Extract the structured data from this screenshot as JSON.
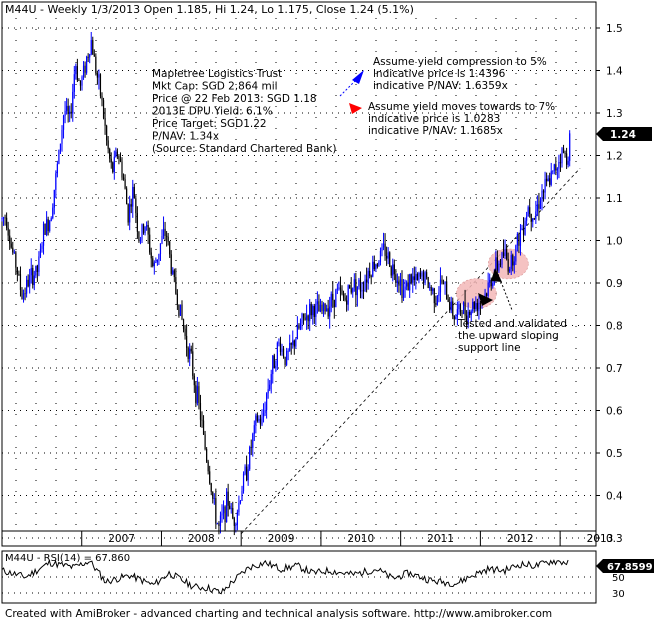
{
  "header": {
    "title": "M44U - Weekly 1/3/2013 Open 1.185, Hi 1.24, Lo 1.175, Close 1.24 (5.1%)"
  },
  "info_box": {
    "lines": [
      "Mapletree Logistics Trust",
      "Mkt Cap: SGD 2,864 mil",
      "Price @ 22 Feb 2013: SGD 1.18",
      "2013E DPU Yield: 6.1%",
      "Price Target: SGD1.22",
      "P/NAV: 1.34x",
      "(Source: Standard Chartered Bank)"
    ]
  },
  "annotations": {
    "up": [
      "Assume yield compression to 5%",
      "indicative price is 1.4396",
      "indicative P/NAV: 1.6359x"
    ],
    "down": [
      "Assume yield moves towards to 7%",
      "indicative price is 1.0283",
      "indicative P/NAV: 1.1685x"
    ],
    "support": [
      "Tested and validated",
      "the upward sloping",
      "support line"
    ]
  },
  "colors": {
    "up_arrow": "#0000ff",
    "down_arrow": "#ff0000",
    "candle_up": "#0000ff",
    "candle_down": "#000000",
    "highlight": "#f4b8b8",
    "label_bg": "#000000"
  },
  "footer": {
    "text": "Created with AmiBroker - advanced charting and technical analysis software. http://www.amibroker.com"
  },
  "chart_data": [
    {
      "type": "candlestick",
      "title": "M44U - Weekly 1/3/2013 Open 1.185, Hi 1.24, Lo 1.175, Close 1.24 (5.1%)",
      "ylim": [
        0.28,
        1.56
      ],
      "y_ticks": [
        0.3,
        0.4,
        0.5,
        0.6,
        0.7,
        0.8,
        0.9,
        1.0,
        1.1,
        1.2,
        1.3,
        1.4,
        1.5
      ],
      "x_ticks": [
        "2007",
        "2008",
        "2009",
        "2010",
        "2011",
        "2012",
        "2013"
      ],
      "last_price_label": "1.24",
      "grid": true,
      "price_path": [
        [
          2006.0,
          1.05
        ],
        [
          2006.05,
          1.06
        ],
        [
          2006.12,
          0.98
        ],
        [
          2006.18,
          0.94
        ],
        [
          2006.25,
          0.87
        ],
        [
          2006.35,
          0.91
        ],
        [
          2006.45,
          0.93
        ],
        [
          2006.52,
          1.02
        ],
        [
          2006.6,
          1.05
        ],
        [
          2006.7,
          1.18
        ],
        [
          2006.78,
          1.31
        ],
        [
          2006.85,
          1.28
        ],
        [
          2006.92,
          1.42
        ],
        [
          2006.98,
          1.36
        ],
        [
          2007.05,
          1.42
        ],
        [
          2007.12,
          1.47
        ],
        [
          2007.18,
          1.4
        ],
        [
          2007.25,
          1.33
        ],
        [
          2007.32,
          1.22
        ],
        [
          2007.38,
          1.16
        ],
        [
          2007.45,
          1.21
        ],
        [
          2007.52,
          1.15
        ],
        [
          2007.58,
          1.06
        ],
        [
          2007.65,
          1.12
        ],
        [
          2007.72,
          1.0
        ],
        [
          2007.8,
          1.04
        ],
        [
          2007.9,
          0.93
        ],
        [
          2008.0,
          1.0
        ],
        [
          2008.06,
          1.02
        ],
        [
          2008.12,
          0.94
        ],
        [
          2008.18,
          0.88
        ],
        [
          2008.24,
          0.83
        ],
        [
          2008.3,
          0.77
        ],
        [
          2008.36,
          0.73
        ],
        [
          2008.42,
          0.66
        ],
        [
          2008.48,
          0.6
        ],
        [
          2008.54,
          0.52
        ],
        [
          2008.6,
          0.45
        ],
        [
          2008.66,
          0.37
        ],
        [
          2008.72,
          0.32
        ],
        [
          2008.78,
          0.36
        ],
        [
          2008.84,
          0.39
        ],
        [
          2008.9,
          0.34
        ],
        [
          2008.96,
          0.37
        ],
        [
          2009.02,
          0.43
        ],
        [
          2009.08,
          0.47
        ],
        [
          2009.14,
          0.53
        ],
        [
          2009.2,
          0.58
        ],
        [
          2009.26,
          0.57
        ],
        [
          2009.32,
          0.64
        ],
        [
          2009.4,
          0.71
        ],
        [
          2009.48,
          0.76
        ],
        [
          2009.56,
          0.72
        ],
        [
          2009.64,
          0.75
        ],
        [
          2009.72,
          0.79
        ],
        [
          2009.8,
          0.82
        ],
        [
          2009.9,
          0.84
        ],
        [
          2010.0,
          0.83
        ],
        [
          2010.1,
          0.85
        ],
        [
          2010.2,
          0.88
        ],
        [
          2010.3,
          0.86
        ],
        [
          2010.4,
          0.9
        ],
        [
          2010.5,
          0.89
        ],
        [
          2010.6,
          0.93
        ],
        [
          2010.7,
          0.95
        ],
        [
          2010.8,
          0.98
        ],
        [
          2010.88,
          0.94
        ],
        [
          2010.96,
          0.92
        ],
        [
          2011.04,
          0.88
        ],
        [
          2011.12,
          0.91
        ],
        [
          2011.2,
          0.9
        ],
        [
          2011.28,
          0.92
        ],
        [
          2011.36,
          0.89
        ],
        [
          2011.44,
          0.87
        ],
        [
          2011.52,
          0.9
        ],
        [
          2011.6,
          0.86
        ],
        [
          2011.68,
          0.82
        ],
        [
          2011.76,
          0.84
        ],
        [
          2011.84,
          0.83
        ],
        [
          2011.92,
          0.85
        ],
        [
          2012.0,
          0.86
        ],
        [
          2012.08,
          0.88
        ],
        [
          2012.16,
          0.92
        ],
        [
          2012.24,
          0.95
        ],
        [
          2012.3,
          0.97
        ],
        [
          2012.36,
          0.94
        ],
        [
          2012.44,
          0.98
        ],
        [
          2012.52,
          1.03
        ],
        [
          2012.6,
          1.08
        ],
        [
          2012.68,
          1.06
        ],
        [
          2012.76,
          1.11
        ],
        [
          2012.84,
          1.13
        ],
        [
          2012.92,
          1.16
        ],
        [
          2012.98,
          1.19
        ],
        [
          2013.03,
          1.21
        ],
        [
          2013.08,
          1.19
        ],
        [
          2013.12,
          1.24
        ]
      ],
      "support_line": [
        [
          2009.0,
          0.31
        ],
        [
          2013.25,
          1.17
        ]
      ],
      "highlight_ellipses": [
        [
          2011.95,
          0.875
        ],
        [
          2012.35,
          0.945
        ]
      ],
      "arrow_targets": [
        [
          2013.25,
          1.4396
        ],
        [
          2013.25,
          1.0283
        ]
      ]
    },
    {
      "type": "line",
      "title": "M44U - RSI(14) = 67.860",
      "ylim": [
        20,
        80
      ],
      "y_ticks": [
        30,
        50
      ],
      "last_value_label": "67.8599",
      "rsi_path": [
        [
          2006.0,
          58
        ],
        [
          2006.3,
          50
        ],
        [
          2006.6,
          68
        ],
        [
          2006.9,
          62
        ],
        [
          2007.1,
          70
        ],
        [
          2007.3,
          44
        ],
        [
          2007.6,
          52
        ],
        [
          2007.9,
          40
        ],
        [
          2008.1,
          55
        ],
        [
          2008.4,
          38
        ],
        [
          2008.6,
          36
        ],
        [
          2008.75,
          30
        ],
        [
          2008.9,
          45
        ],
        [
          2009.1,
          62
        ],
        [
          2009.3,
          68
        ],
        [
          2009.5,
          60
        ],
        [
          2009.7,
          64
        ],
        [
          2009.9,
          55
        ],
        [
          2010.1,
          58
        ],
        [
          2010.4,
          53
        ],
        [
          2010.7,
          60
        ],
        [
          2010.9,
          48
        ],
        [
          2011.1,
          55
        ],
        [
          2011.4,
          45
        ],
        [
          2011.7,
          42
        ],
        [
          2011.9,
          52
        ],
        [
          2012.1,
          60
        ],
        [
          2012.3,
          58
        ],
        [
          2012.5,
          66
        ],
        [
          2012.7,
          64
        ],
        [
          2012.9,
          70
        ],
        [
          2013.1,
          68
        ]
      ]
    }
  ]
}
